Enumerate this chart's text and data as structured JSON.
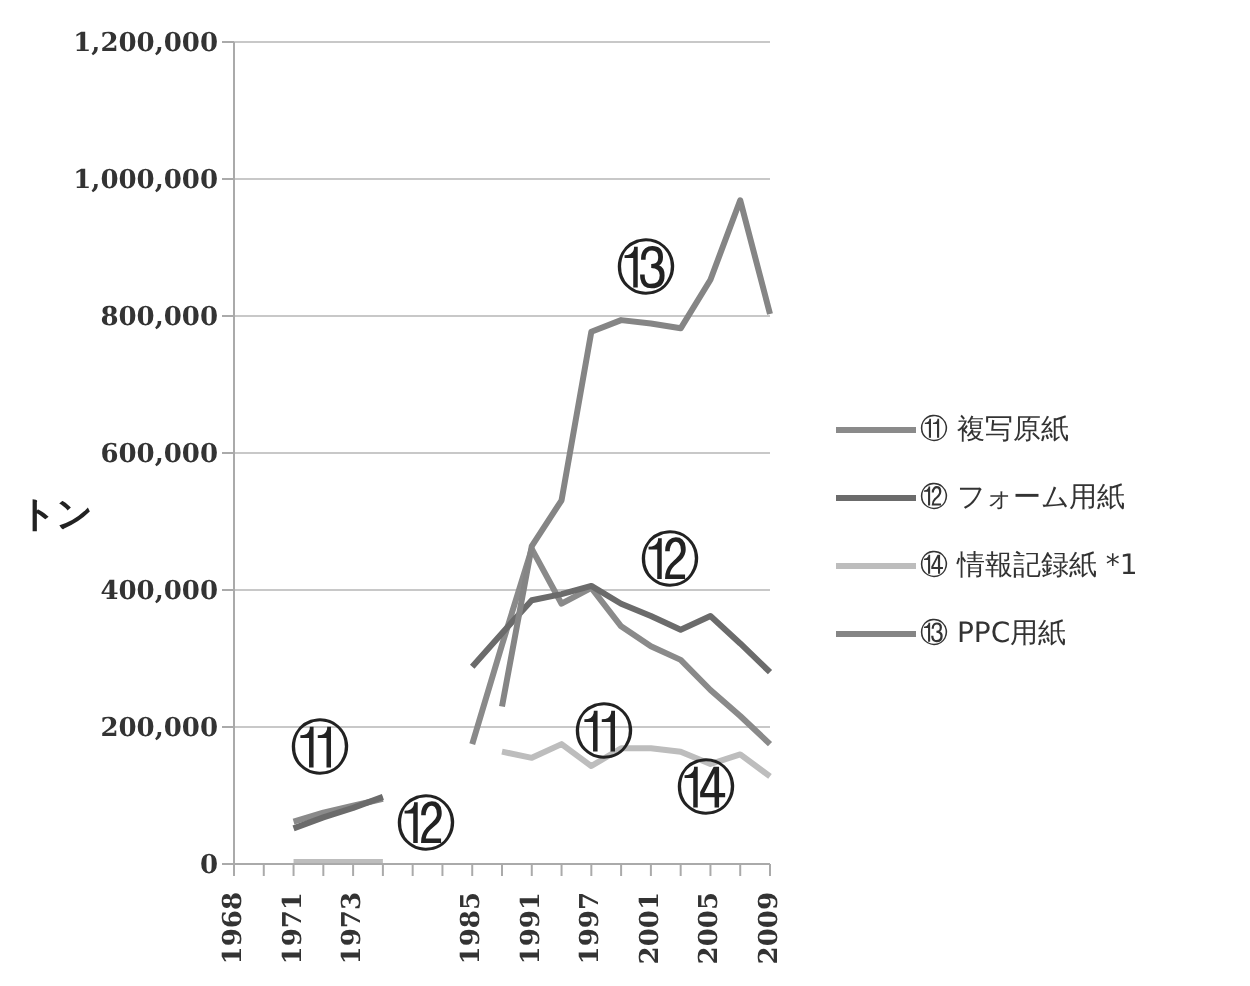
{
  "chart_data": {
    "type": "line",
    "ylabel": "トン",
    "categories": [
      "1968",
      null,
      "1971",
      null,
      "1973",
      null,
      null,
      null,
      "1985",
      null,
      "1991",
      null,
      "1997",
      null,
      "2001",
      null,
      "2005",
      null,
      "2009"
    ],
    "series": [
      {
        "name": "⑪ 複写原紙",
        "color": "#8a8a8a",
        "values": [
          null,
          null,
          62000,
          75000,
          85000,
          95000,
          null,
          null,
          175000,
          320000,
          460000,
          380000,
          403000,
          347000,
          318000,
          298000,
          254000,
          216000,
          175000
        ]
      },
      {
        "name": "⑫ フォーム用紙",
        "color": "#6b6b6b",
        "values": [
          null,
          null,
          52000,
          68000,
          82000,
          98000,
          null,
          null,
          288000,
          337000,
          385000,
          394000,
          406000,
          380000,
          362000,
          342000,
          362000,
          322000,
          280000
        ]
      },
      {
        "name": "⑭ 情報記録紙 *1",
        "color": "#bdbdbd",
        "values": [
          null,
          null,
          3000,
          3000,
          3000,
          3000,
          null,
          null,
          null,
          164000,
          155000,
          175000,
          143000,
          169000,
          169000,
          164000,
          146000,
          160000,
          128000
        ]
      },
      {
        "name": "⑬ PPC用紙",
        "color": "#858585",
        "values": [
          null,
          null,
          null,
          null,
          null,
          null,
          null,
          null,
          null,
          230000,
          464000,
          531000,
          777000,
          794000,
          789000,
          782000,
          853000,
          969000,
          803000
        ]
      }
    ],
    "ylim": [
      0,
      1200000
    ],
    "yticks": [
      {
        "value": 0,
        "label": "0"
      },
      {
        "value": 200000,
        "label": "200,000"
      },
      {
        "value": 400000,
        "label": "400,000"
      },
      {
        "value": 600000,
        "label": "600,000"
      },
      {
        "value": 800000,
        "label": "800,000"
      },
      {
        "value": 1000000,
        "label": "1,000,000"
      },
      {
        "value": 1200000,
        "label": "1,200,000"
      }
    ],
    "grid": "y",
    "legend": "right",
    "marker": "none",
    "line_style": "solid",
    "annotations": [
      "⑪",
      "⑫",
      "⑬",
      "⑫",
      "⑪",
      "⑭"
    ]
  }
}
